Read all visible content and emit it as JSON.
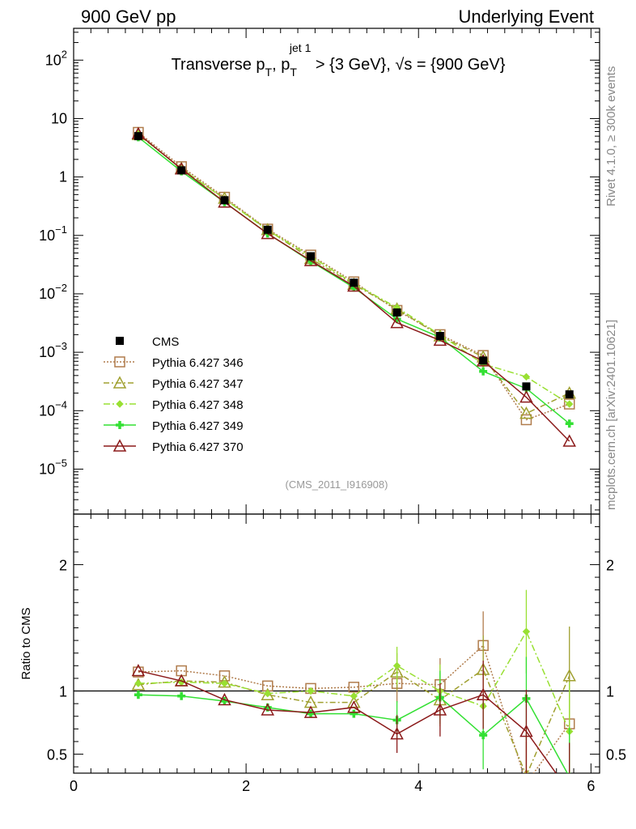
{
  "header": {
    "left": "900 GeV pp",
    "right": "Underlying Event"
  },
  "title": {
    "main": "Transverse p",
    "sub": "T",
    "mid": ", p",
    "sub2": "T",
    "sup2": "jet 1",
    "rest": " > {3 GeV}, √s = {900 GeV}"
  },
  "side_labels": {
    "rivet": "Rivet 4.1.0, ≥ 300k events",
    "mcplots": "mcplots.cern.ch [arXiv:2401.10621]"
  },
  "analysis_id": "(CMS_2011_I916908)",
  "ratio_ylabel": "Ratio to CMS",
  "chart_data": {
    "type": "line",
    "x": [
      0.75,
      1.25,
      1.75,
      2.25,
      2.75,
      3.25,
      3.75,
      4.25,
      4.75,
      5.25,
      5.75
    ],
    "xlim": [
      0,
      6.1
    ],
    "main_ylim": [
      1.7e-06,
      350.0
    ],
    "main_yscale": "log",
    "main_yticks": [
      {
        "v": 100,
        "label": "10",
        "exp": "2"
      },
      {
        "v": 10,
        "label": "10",
        "exp": ""
      },
      {
        "v": 1,
        "label": "1",
        "exp": ""
      },
      {
        "v": 0.1,
        "label": "10",
        "exp": "−1"
      },
      {
        "v": 0.01,
        "label": "10",
        "exp": "−2"
      },
      {
        "v": 0.001,
        "label": "10",
        "exp": "−3"
      },
      {
        "v": 0.0001,
        "label": "10",
        "exp": "−4"
      },
      {
        "v": 1e-05,
        "label": "10",
        "exp": "−5"
      }
    ],
    "xticks": [
      {
        "v": 0,
        "label": "0"
      },
      {
        "v": 2,
        "label": "2"
      },
      {
        "v": 4,
        "label": "4"
      },
      {
        "v": 6,
        "label": "6"
      }
    ],
    "ratio_ylim": [
      0.35,
      2.4
    ],
    "ratio_yticks": [
      {
        "v": 0.5,
        "label": "0.5"
      },
      {
        "v": 1,
        "label": "1"
      },
      {
        "v": 2,
        "label": "2"
      }
    ],
    "data": {
      "name": "CMS",
      "values": [
        5.0,
        1.3,
        0.4,
        0.125,
        0.044,
        0.0155,
        0.0048,
        0.0019,
        0.00072,
        0.00026,
        0.00019
      ]
    },
    "series": [
      {
        "name": "Pythia 6.427 346",
        "color": "#b07c4c",
        "dash": "2,2",
        "marker": "square",
        "values": [
          5.8,
          1.5,
          0.45,
          0.128,
          0.046,
          0.016,
          0.0052,
          0.002,
          0.00088,
          7e-05,
          0.00013
        ],
        "ratio": [
          1.15,
          1.16,
          1.12,
          1.04,
          1.02,
          1.03,
          1.06,
          1.05,
          1.36,
          0.27,
          0.74
        ]
      },
      {
        "name": "Pythia 6.427 347",
        "color": "#a0a030",
        "dash": "7,3,2,3",
        "marker": "triangle",
        "values": [
          5.3,
          1.4,
          0.43,
          0.125,
          0.04,
          0.0145,
          0.0055,
          0.0019,
          0.00083,
          9e-05,
          0.0002
        ],
        "ratio": [
          1.05,
          1.08,
          1.07,
          0.97,
          0.91,
          0.91,
          1.15,
          0.93,
          1.17,
          0.33,
          1.12
        ]
      },
      {
        "name": "Pythia 6.427 348",
        "color": "#99e033",
        "dash": "8,3,2,3",
        "marker": "diamond",
        "values": [
          5.4,
          1.38,
          0.42,
          0.123,
          0.044,
          0.015,
          0.0058,
          0.002,
          0.00063,
          0.00038,
          0.00013
        ],
        "ratio": [
          1.06,
          1.07,
          1.06,
          0.98,
          1.0,
          0.96,
          1.2,
          1.0,
          0.88,
          1.47,
          0.68
        ]
      },
      {
        "name": "Pythia 6.427 349",
        "color": "#33e033",
        "dash": "",
        "marker": "cross",
        "values": [
          4.8,
          1.25,
          0.37,
          0.108,
          0.036,
          0.0128,
          0.0037,
          0.0018,
          0.00047,
          0.00024,
          6e-05
        ],
        "ratio": [
          0.97,
          0.96,
          0.92,
          0.87,
          0.82,
          0.82,
          0.77,
          0.95,
          0.65,
          0.94,
          0.32
        ]
      },
      {
        "name": "Pythia 6.427 370",
        "color": "#8b1a1a",
        "dash": "",
        "marker": "triangle-open",
        "values": [
          5.5,
          1.37,
          0.37,
          0.107,
          0.037,
          0.0135,
          0.0032,
          0.0016,
          0.00071,
          0.00017,
          3e-05
        ],
        "ratio": [
          1.16,
          1.08,
          0.93,
          0.85,
          0.83,
          0.87,
          0.66,
          0.85,
          0.97,
          0.68,
          0.2
        ]
      }
    ]
  }
}
